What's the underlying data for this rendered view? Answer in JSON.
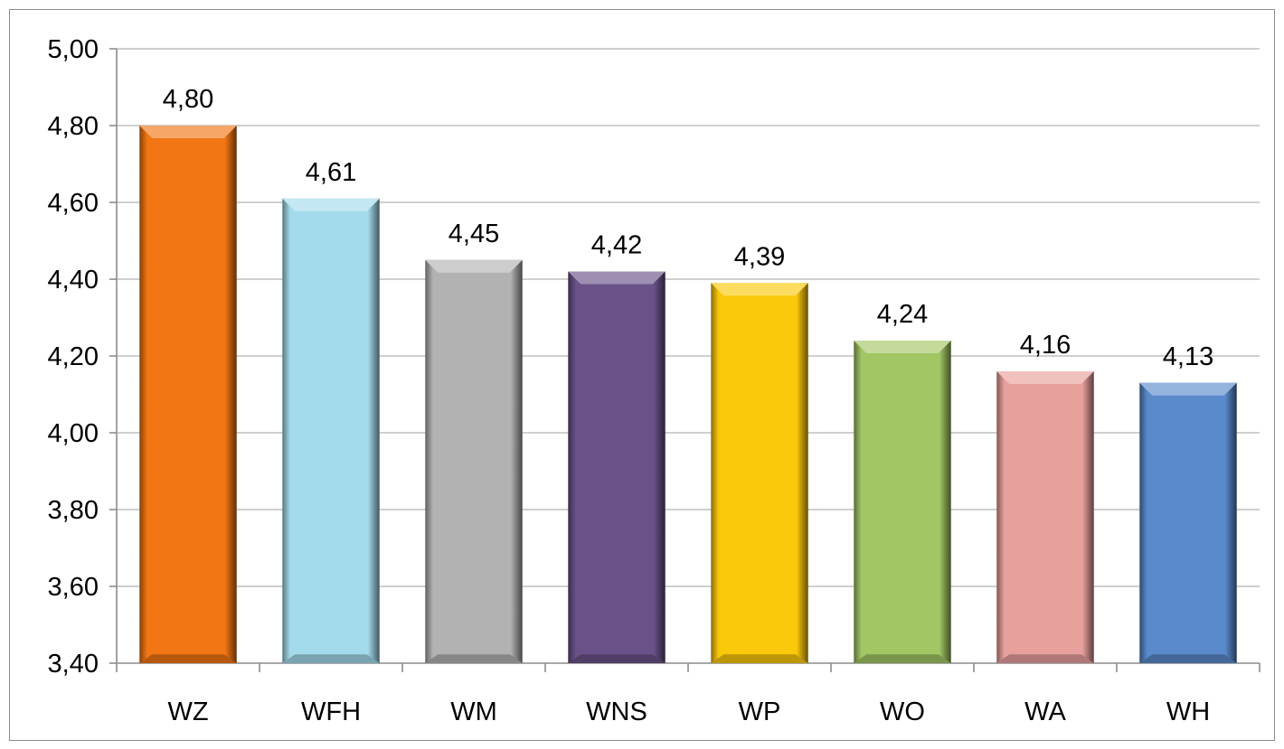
{
  "chart_data": {
    "type": "bar",
    "categories": [
      "WZ",
      "WFH",
      "WM",
      "WNS",
      "WP",
      "WO",
      "WA",
      "WH"
    ],
    "values": [
      4.8,
      4.61,
      4.45,
      4.42,
      4.39,
      4.24,
      4.16,
      4.13
    ],
    "data_labels": [
      "4,80",
      "4,61",
      "4,45",
      "4,42",
      "4,39",
      "4,24",
      "4,16",
      "4,13"
    ],
    "bar_colors": [
      "#f27613",
      "#a4dbec",
      "#b2b2b2",
      "#6a5289",
      "#fbc90b",
      "#a3c665",
      "#e8a09d",
      "#5a8acb"
    ],
    "y_ticks": [
      3.4,
      3.6,
      3.8,
      4.0,
      4.2,
      4.4,
      4.6,
      4.8,
      5.0
    ],
    "y_tick_labels": [
      "3,40",
      "3,60",
      "3,80",
      "4,00",
      "4,20",
      "4,40",
      "4,60",
      "4,80",
      "5,00"
    ],
    "ylim": [
      3.4,
      5.0
    ],
    "grid": true,
    "legend": "none",
    "title": "",
    "xlabel": "",
    "ylabel": ""
  }
}
